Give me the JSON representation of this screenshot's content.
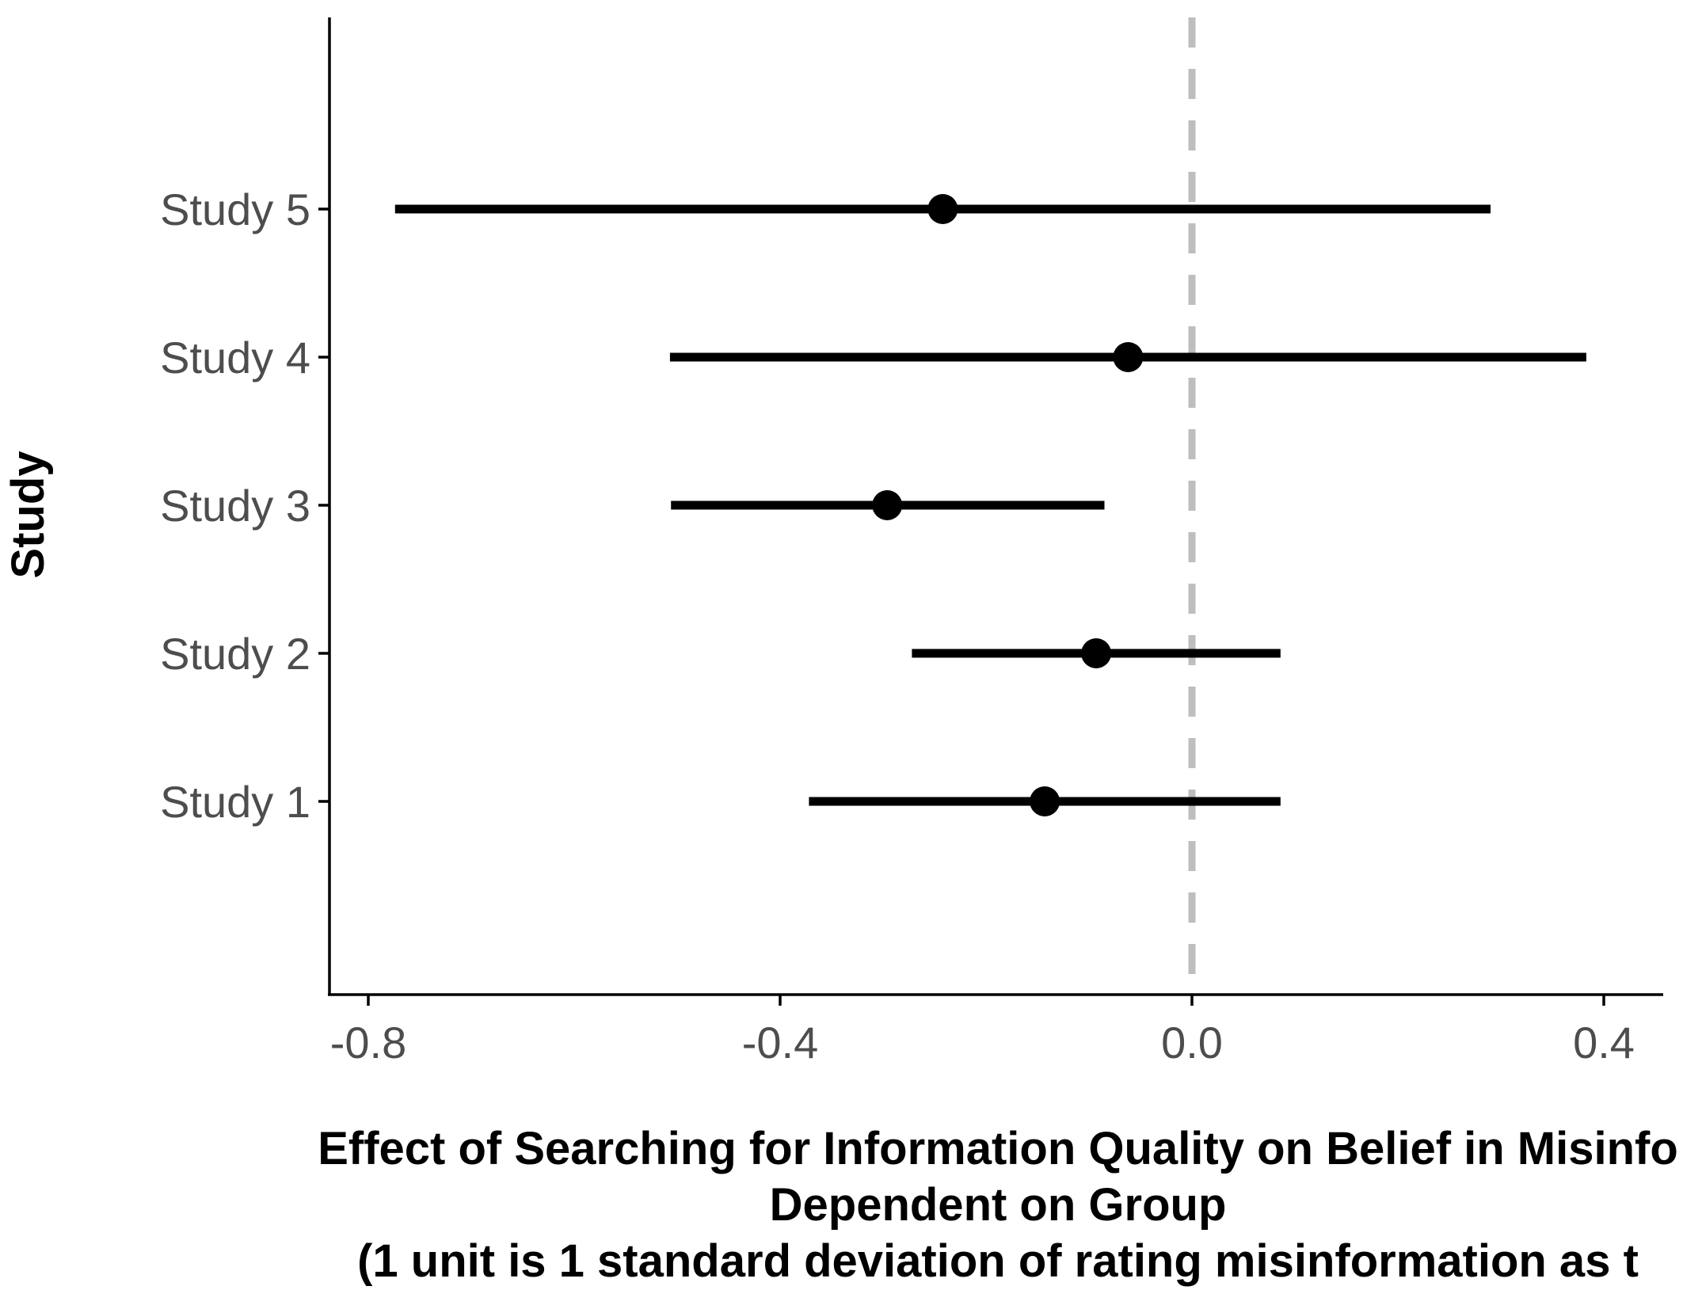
{
  "chart_data": {
    "type": "forest",
    "ylabel": "Study",
    "xlabel_lines": [
      "Effect of Searching for Information Quality on Belief in Misinfo",
      "Dependent on Group",
      "(1 unit is 1 standard deviation of rating misinformation as t"
    ],
    "xlim": [
      -0.84,
      0.46
    ],
    "x_ticks": [
      -0.8,
      -0.4,
      0.0,
      0.4
    ],
    "x_tick_labels": [
      "-0.8",
      "-0.4",
      "0.0",
      "0.4"
    ],
    "reference_line": 0.0,
    "grid": false,
    "colors": {
      "point": "#000000",
      "interval": "#000000",
      "reference_line": "#bebebe",
      "axis": "#000000",
      "tick_label": "#4d4d4d"
    },
    "studies": [
      {
        "label": "Study 1",
        "estimate": -0.143,
        "lower": -0.372,
        "upper": 0.086
      },
      {
        "label": "Study 2",
        "estimate": -0.093,
        "lower": -0.272,
        "upper": 0.086
      },
      {
        "label": "Study 3",
        "estimate": -0.296,
        "lower": -0.506,
        "upper": -0.085
      },
      {
        "label": "Study 4",
        "estimate": -0.062,
        "lower": -0.507,
        "upper": 0.383
      },
      {
        "label": "Study 5",
        "estimate": -0.242,
        "lower": -0.774,
        "upper": 0.29
      }
    ]
  }
}
